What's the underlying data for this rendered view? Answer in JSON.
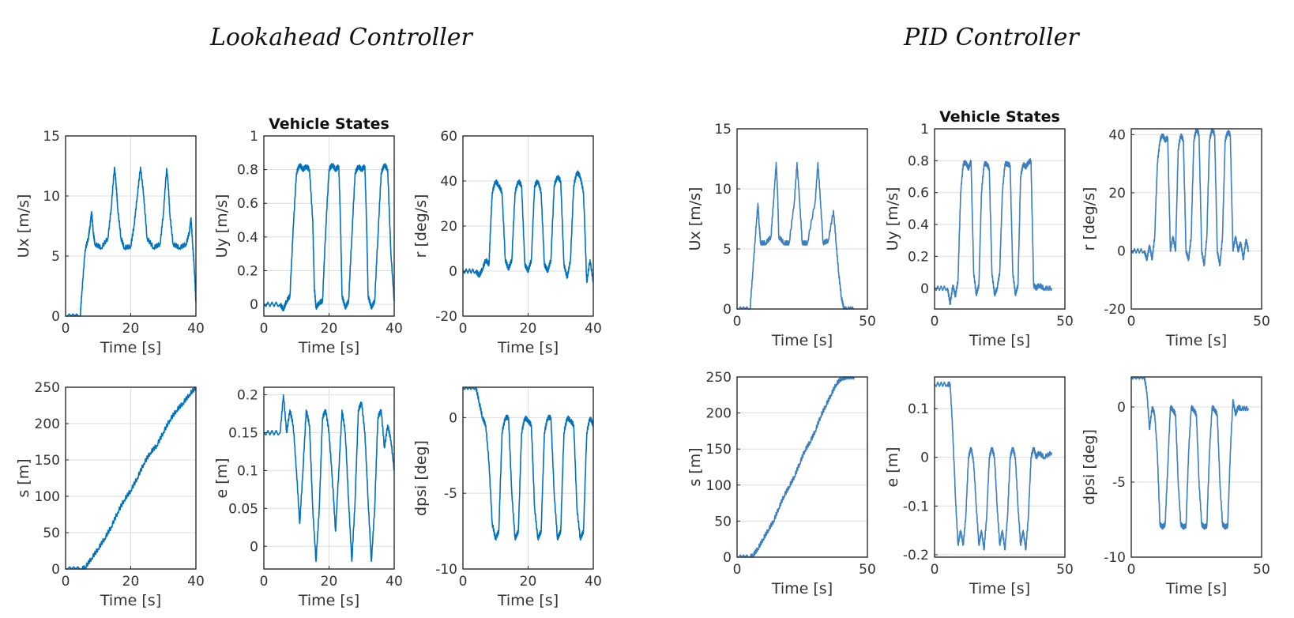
{
  "panels": [
    {
      "title": "Lookahead Controller"
    },
    {
      "title": "PID Controller"
    }
  ],
  "colors": {
    "left_trace": "#0072bd",
    "right_trace": "#3a7fc0",
    "title": "#111111"
  },
  "chart_data": [
    {
      "panel": "Lookahead Controller",
      "type": "line",
      "title": "",
      "xlabel": "Time [s]",
      "ylabel": "Ux [m/s]",
      "xlim": [
        0,
        40
      ],
      "ylim": [
        0,
        15
      ],
      "xticks": [
        0,
        20,
        40
      ],
      "yticks": [
        0,
        5,
        10,
        15
      ],
      "grid": true,
      "x": [
        0,
        4.5,
        5,
        6,
        7,
        7.5,
        8,
        8.5,
        9,
        11,
        13,
        14,
        15,
        15.5,
        16,
        17,
        18,
        20,
        21,
        22,
        23,
        24,
        25,
        27,
        29,
        30,
        31,
        31.5,
        32,
        33,
        35,
        37,
        38,
        38.5,
        39,
        39.5,
        40
      ],
      "y": [
        0,
        0,
        2,
        5.5,
        6.5,
        7.5,
        8.7,
        7,
        6,
        5.7,
        6.5,
        9,
        12.4,
        11,
        9,
        6.5,
        5.7,
        5.8,
        7.5,
        10,
        12.4,
        10,
        6.5,
        5.7,
        6,
        8.5,
        12.3,
        11,
        8.5,
        6,
        5.7,
        6,
        7,
        8.2,
        6,
        4,
        1.2
      ]
    },
    {
      "panel": "Lookahead Controller",
      "type": "line",
      "title": "Vehicle States",
      "xlabel": "Time [s]",
      "ylabel": "Uy [m/s]",
      "xlim": [
        0,
        40
      ],
      "ylim": [
        -0.07,
        1.0
      ],
      "xticks": [
        0,
        20,
        40
      ],
      "yticks": [
        0,
        0.2,
        0.4,
        0.6,
        0.8,
        1
      ],
      "grid": true,
      "x": [
        0,
        5,
        6,
        7,
        8,
        9,
        10,
        11,
        12,
        13,
        14,
        15,
        15.5,
        16,
        17,
        18,
        19,
        20,
        21,
        22,
        23,
        23.5,
        24,
        25,
        26,
        27,
        28,
        29,
        30,
        31,
        31.5,
        32,
        33,
        34,
        35,
        36,
        37,
        38,
        39,
        40
      ],
      "y": [
        0,
        0,
        -0.03,
        0.02,
        0.05,
        0.45,
        0.78,
        0.83,
        0.8,
        0.82,
        0.8,
        0.5,
        0.1,
        -0.02,
        0.01,
        0.02,
        0.45,
        0.8,
        0.83,
        0.8,
        0.82,
        0.5,
        0.05,
        -0.02,
        0.02,
        0.4,
        0.78,
        0.82,
        0.8,
        0.82,
        0.5,
        0.05,
        -0.02,
        0.02,
        0.4,
        0.78,
        0.83,
        0.8,
        0.3,
        0.02
      ]
    },
    {
      "panel": "Lookahead Controller",
      "type": "line",
      "title": "",
      "xlabel": "Time [s]",
      "ylabel": "r [deg/s]",
      "xlim": [
        0,
        40
      ],
      "ylim": [
        -20,
        60
      ],
      "xticks": [
        0,
        20,
        40
      ],
      "yticks": [
        -20,
        0,
        20,
        40,
        60
      ],
      "grid": true,
      "x": [
        0,
        4,
        5,
        6,
        7,
        8,
        8.5,
        9,
        10,
        11,
        12,
        13,
        14,
        15,
        16,
        17,
        18,
        19,
        20,
        21,
        22,
        23,
        24,
        25,
        26,
        27,
        28,
        29,
        30,
        31,
        32,
        33,
        34,
        35,
        36,
        37,
        38,
        39,
        40
      ],
      "y": [
        0,
        0,
        -2,
        1,
        5,
        3,
        20,
        35,
        40,
        38,
        35,
        5,
        1,
        5,
        35,
        40,
        38,
        3,
        0,
        5,
        38,
        40,
        35,
        3,
        0,
        5,
        38,
        42,
        40,
        3,
        -3,
        5,
        38,
        44,
        42,
        35,
        -5,
        5,
        -5
      ]
    },
    {
      "panel": "Lookahead Controller",
      "type": "line",
      "title": "",
      "xlabel": "Time [s]",
      "ylabel": "s [m]",
      "xlim": [
        0,
        40
      ],
      "ylim": [
        0,
        250
      ],
      "xticks": [
        0,
        20,
        40
      ],
      "yticks": [
        0,
        50,
        100,
        150,
        200,
        250
      ],
      "grid": true,
      "x": [
        0,
        5,
        6,
        8,
        10,
        12,
        14,
        16,
        18,
        20,
        22,
        24,
        26,
        28,
        30,
        32,
        34,
        36,
        38,
        40
      ],
      "y": [
        0,
        0,
        2,
        15,
        28,
        42,
        58,
        78,
        95,
        108,
        125,
        145,
        160,
        170,
        188,
        205,
        218,
        228,
        240,
        250
      ]
    },
    {
      "panel": "Lookahead Controller",
      "type": "line",
      "title": "",
      "xlabel": "Time [s]",
      "ylabel": "e [m]",
      "xlim": [
        0,
        40
      ],
      "ylim": [
        -0.03,
        0.21
      ],
      "xticks": [
        0,
        20,
        40
      ],
      "yticks": [
        0,
        0.05,
        0.1,
        0.15,
        0.2
      ],
      "grid": true,
      "x": [
        0,
        5,
        6,
        7,
        8,
        9,
        10,
        11,
        12,
        13,
        14,
        15,
        16,
        17,
        18,
        19,
        20,
        21,
        22,
        23,
        24,
        25,
        26,
        27,
        28,
        29,
        30,
        31,
        32,
        33,
        34,
        35,
        36,
        37,
        38,
        39,
        40
      ],
      "y": [
        0.15,
        0.15,
        0.2,
        0.15,
        0.18,
        0.16,
        0.1,
        0.03,
        0.1,
        0.18,
        0.16,
        0.05,
        -0.02,
        0.05,
        0.17,
        0.18,
        0.15,
        0.09,
        0.02,
        0.1,
        0.18,
        0.15,
        0.06,
        -0.02,
        0.06,
        0.18,
        0.19,
        0.15,
        0.06,
        -0.02,
        0.05,
        0.17,
        0.18,
        0.13,
        0.16,
        0.14,
        0.1
      ]
    },
    {
      "panel": "Lookahead Controller",
      "type": "line",
      "title": "",
      "xlabel": "Time [s]",
      "ylabel": "dpsi [deg]",
      "xlim": [
        0,
        40
      ],
      "ylim": [
        -10,
        2
      ],
      "xticks": [
        0,
        20,
        40
      ],
      "yticks": [
        -10,
        -5,
        0
      ],
      "grid": true,
      "x": [
        0,
        4,
        5,
        6,
        7,
        8,
        9,
        10,
        11,
        12,
        13,
        14,
        15,
        16,
        17,
        18,
        19,
        20,
        21,
        22,
        23,
        24,
        25,
        26,
        27,
        28,
        29,
        30,
        31,
        32,
        33,
        34,
        35,
        36,
        37,
        38,
        39,
        40
      ],
      "y": [
        2,
        2,
        1,
        0,
        -0.5,
        -3,
        -7,
        -8,
        -7.5,
        -1,
        0,
        0,
        -5,
        -8,
        -7.5,
        -1,
        0,
        -0.2,
        -0.5,
        -6,
        -8,
        -7.5,
        -1,
        0,
        0,
        -5,
        -8,
        -7.5,
        -1,
        0,
        -0.2,
        -0.5,
        -6,
        -8,
        -7.5,
        -1,
        0,
        -0.5
      ]
    },
    {
      "panel": "PID Controller",
      "type": "line",
      "title": "",
      "xlabel": "Time [s]",
      "ylabel": "Ux [m/s]",
      "xlim": [
        0,
        50
      ],
      "ylim": [
        0,
        15
      ],
      "xticks": [
        0,
        50
      ],
      "yticks": [
        0,
        5,
        10,
        15
      ],
      "grid": true,
      "x": [
        0,
        5,
        6,
        7,
        8,
        8.5,
        9,
        11,
        13,
        14,
        15,
        15.5,
        16,
        18,
        20,
        22,
        23,
        24,
        25,
        27,
        30,
        31,
        32,
        33,
        35,
        37,
        38,
        39,
        40,
        41,
        42,
        45
      ],
      "y": [
        0,
        0,
        3,
        6,
        8.8,
        7,
        5.5,
        5.5,
        6,
        9,
        12.2,
        10,
        6,
        5.5,
        5.5,
        9,
        12.2,
        9,
        5.5,
        5.5,
        9,
        12.2,
        9,
        5.5,
        5.7,
        8.2,
        5.5,
        3,
        1,
        0,
        0,
        0
      ]
    },
    {
      "panel": "PID Controller",
      "type": "line",
      "title": "Vehicle States",
      "xlabel": "Time [s]",
      "ylabel": "Uy [m/s]",
      "xlim": [
        0,
        50
      ],
      "ylim": [
        -0.13,
        1.0
      ],
      "xticks": [
        0,
        50
      ],
      "yticks": [
        0,
        0.2,
        0.4,
        0.6,
        0.8,
        1
      ],
      "grid": true,
      "x": [
        0,
        5,
        6,
        7,
        8,
        9,
        10,
        11,
        12,
        13,
        14,
        15,
        16,
        17,
        18,
        19,
        20,
        21,
        22,
        23,
        24,
        25,
        26,
        27,
        28,
        29,
        30,
        31,
        32,
        33,
        34,
        35,
        36,
        37,
        38,
        39,
        40,
        42,
        45
      ],
      "y": [
        0,
        0,
        -0.1,
        0.02,
        -0.05,
        0.05,
        0.6,
        0.78,
        0.79,
        0.75,
        0.8,
        0.1,
        -0.04,
        0.02,
        0.6,
        0.78,
        0.78,
        0.75,
        0.1,
        -0.04,
        0,
        0.1,
        0.6,
        0.78,
        0.78,
        0.77,
        0.1,
        -0.04,
        0.02,
        0.7,
        0.78,
        0.76,
        0.79,
        0.8,
        0.02,
        0,
        0.02,
        0,
        0
      ]
    },
    {
      "panel": "PID Controller",
      "type": "line",
      "title": "",
      "xlabel": "Time [s]",
      "ylabel": "r [deg/s]",
      "xlim": [
        0,
        50
      ],
      "ylim": [
        -20,
        42
      ],
      "xticks": [
        0,
        50
      ],
      "yticks": [
        -20,
        0,
        20,
        40
      ],
      "grid": true,
      "x": [
        0,
        5,
        6,
        7,
        8,
        9,
        10,
        11,
        12,
        13,
        14,
        15,
        16,
        17,
        18,
        19,
        20,
        21,
        22,
        23,
        24,
        25,
        26,
        27,
        28,
        29,
        30,
        31,
        32,
        33,
        34,
        35,
        36,
        37,
        38,
        39,
        40,
        41,
        42,
        43,
        44,
        45
      ],
      "y": [
        0,
        0,
        -3,
        2,
        -3,
        5,
        30,
        38,
        40,
        38,
        39,
        0,
        5,
        0,
        35,
        40,
        38,
        0,
        -3,
        5,
        38,
        42,
        40,
        0,
        -5,
        5,
        38,
        42,
        40,
        0,
        -5,
        5,
        38,
        41,
        40,
        0,
        5,
        0,
        3,
        -3,
        4,
        0
      ]
    },
    {
      "panel": "PID Controller",
      "type": "line",
      "title": "",
      "xlabel": "Time [s]",
      "ylabel": "s [m]",
      "xlim": [
        0,
        50
      ],
      "ylim": [
        0,
        250
      ],
      "xticks": [
        0,
        50
      ],
      "yticks": [
        0,
        50,
        100,
        150,
        200,
        250
      ],
      "grid": true,
      "x": [
        0,
        5,
        6,
        8,
        10,
        12,
        14,
        16,
        18,
        20,
        22,
        24,
        26,
        28,
        30,
        32,
        34,
        36,
        38,
        40,
        42,
        45
      ],
      "y": [
        0,
        0,
        2,
        12,
        25,
        38,
        50,
        68,
        85,
        98,
        112,
        130,
        148,
        160,
        175,
        195,
        210,
        225,
        240,
        248,
        250,
        250
      ]
    },
    {
      "panel": "PID Controller",
      "type": "line",
      "title": "",
      "xlabel": "Time [s]",
      "ylabel": "e [m]",
      "xlim": [
        0,
        50
      ],
      "ylim": [
        -0.205,
        0.165
      ],
      "xticks": [
        0,
        50
      ],
      "yticks": [
        -0.2,
        -0.1,
        0,
        0.1
      ],
      "grid": true,
      "x": [
        0,
        5,
        6,
        7,
        8,
        9,
        10,
        11,
        12,
        13,
        14,
        15,
        16,
        17,
        18,
        19,
        20,
        21,
        22,
        23,
        24,
        25,
        26,
        27,
        28,
        29,
        30,
        31,
        32,
        33,
        34,
        35,
        36,
        37,
        38,
        39,
        40,
        42,
        45
      ],
      "y": [
        0.15,
        0.15,
        0.15,
        0.05,
        -0.08,
        -0.18,
        -0.15,
        -0.18,
        -0.12,
        0.0,
        0.02,
        -0.01,
        -0.1,
        -0.18,
        -0.15,
        -0.19,
        -0.12,
        0.0,
        0.02,
        0.0,
        -0.1,
        -0.18,
        -0.15,
        -0.19,
        -0.12,
        0.0,
        0.02,
        0.0,
        -0.1,
        -0.18,
        -0.15,
        -0.19,
        -0.12,
        0.0,
        0.02,
        0.0,
        0.01,
        0.0,
        0.01
      ]
    },
    {
      "panel": "PID Controller",
      "type": "line",
      "title": "",
      "xlabel": "Time [s]",
      "ylabel": "dpsi [deg]",
      "xlim": [
        0,
        50
      ],
      "ylim": [
        -10,
        2
      ],
      "xticks": [
        0,
        50
      ],
      "yticks": [
        -10,
        -5,
        0
      ],
      "grid": true,
      "x": [
        0,
        5,
        6,
        7,
        8,
        9,
        10,
        11,
        12,
        13,
        14,
        15,
        16,
        17,
        18,
        19,
        20,
        21,
        22,
        23,
        24,
        25,
        26,
        27,
        28,
        29,
        30,
        31,
        32,
        33,
        34,
        35,
        36,
        37,
        38,
        39,
        40,
        41,
        42,
        45
      ],
      "y": [
        2,
        2,
        1,
        -1.5,
        0,
        -0.5,
        -3,
        -7.8,
        -8,
        -7.8,
        -4,
        0,
        -0.2,
        -0.5,
        -5,
        -7.8,
        -8,
        -7.9,
        -3,
        0,
        -0.2,
        -0.5,
        -5,
        -7.8,
        -8,
        -7.9,
        -3,
        0,
        -0.2,
        -0.5,
        -5,
        -7.8,
        -8,
        -7.9,
        -3,
        0.5,
        -0.5,
        0,
        -0.1,
        -0.1
      ]
    }
  ]
}
